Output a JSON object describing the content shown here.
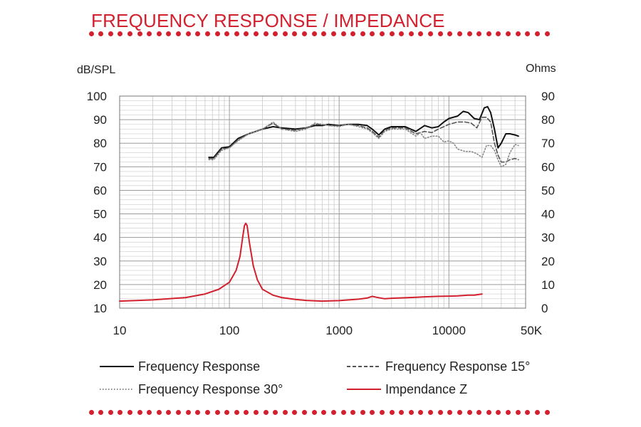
{
  "header": {
    "title": "FREQUENCY RESPONSE / IMPEDANCE",
    "accent_color": "#d2202f"
  },
  "chart_data": {
    "type": "line",
    "xscale": "log",
    "xlim": [
      10,
      50000
    ],
    "x_ticks": [
      10,
      100,
      1000,
      10000,
      50000
    ],
    "x_tick_labels": [
      "10",
      "100",
      "1000",
      "10000",
      "50K"
    ],
    "ylabel_left": "dB/SPL",
    "ylim_left": [
      10,
      100
    ],
    "y_ticks_left": [
      "10",
      "20",
      "30",
      "40",
      "50",
      "60",
      "70",
      "80",
      "90",
      "100"
    ],
    "ylabel_right": "Ohms",
    "ylim_right": [
      0,
      90
    ],
    "y_ticks_right": [
      "0",
      "10",
      "20",
      "30",
      "40",
      "50",
      "60",
      "70",
      "80",
      "90"
    ],
    "grid": true,
    "legend_position": "bottom",
    "series": [
      {
        "name": "Frequency Response",
        "axis": "left",
        "color": "#111111",
        "style": "solid",
        "x": [
          65,
          72,
          85,
          100,
          120,
          150,
          200,
          250,
          300,
          400,
          500,
          600,
          700,
          800,
          1000,
          1200,
          1500,
          1800,
          2000,
          2300,
          2600,
          3000,
          4000,
          5000,
          6000,
          7000,
          8000,
          9000,
          10000,
          12000,
          13500,
          15000,
          17000,
          19000,
          21000,
          22500,
          24000,
          26000,
          28000,
          30000,
          33000,
          36000,
          40000,
          43000
        ],
        "y": [
          74,
          74,
          78,
          78.5,
          82,
          84,
          86,
          87,
          86.5,
          86,
          86.5,
          87.5,
          87.5,
          88,
          87.5,
          88,
          88,
          87.5,
          86,
          83.5,
          86,
          87,
          87,
          85,
          87.5,
          86.5,
          87,
          89,
          90.5,
          91.5,
          93.5,
          93,
          90.5,
          90,
          95,
          95.5,
          93,
          86,
          78,
          80,
          84,
          84,
          83.5,
          83
        ]
      },
      {
        "name": "Frequency Response 15°",
        "axis": "left",
        "color": "#555555",
        "style": "dashed",
        "x": [
          65,
          72,
          85,
          100,
          120,
          150,
          200,
          250,
          300,
          400,
          500,
          600,
          700,
          800,
          1000,
          1200,
          1500,
          1800,
          2000,
          2300,
          2600,
          3000,
          4000,
          5000,
          6000,
          7000,
          8000,
          9000,
          10000,
          12000,
          14000,
          16000,
          18000,
          20000,
          22000,
          24000,
          26000,
          28000,
          30000,
          33000,
          36000,
          40000,
          43000
        ],
        "y": [
          73.5,
          73.5,
          77.5,
          78,
          81.5,
          84,
          86,
          88.5,
          86,
          85.5,
          86.5,
          88,
          88,
          87.5,
          87.5,
          88,
          87.5,
          86.5,
          85,
          82.5,
          85.5,
          86.5,
          86.5,
          84,
          85,
          84.5,
          86,
          87,
          88,
          89,
          89,
          88.5,
          86.5,
          91,
          91,
          89,
          80,
          75,
          72,
          72,
          73,
          73.5,
          73
        ]
      },
      {
        "name": "Frequency Response 30°",
        "axis": "left",
        "color": "#888888",
        "style": "dotted",
        "x": [
          65,
          72,
          85,
          100,
          120,
          150,
          200,
          250,
          300,
          400,
          500,
          600,
          700,
          800,
          1000,
          1200,
          1500,
          1800,
          2000,
          2300,
          2600,
          3000,
          4000,
          5000,
          5500,
          6000,
          7000,
          8000,
          9000,
          10000,
          11000,
          12000,
          14000,
          16000,
          18000,
          20000,
          22000,
          24000,
          26000,
          28000,
          30000,
          33000,
          36000,
          40000,
          43000
        ],
        "y": [
          73,
          73,
          77,
          78,
          81,
          84,
          86,
          89,
          86,
          85,
          86,
          88.5,
          88,
          87.5,
          87,
          88,
          87,
          86,
          84.5,
          82,
          85,
          86,
          86,
          83,
          84.5,
          82,
          83,
          83,
          80.5,
          81,
          80,
          77.5,
          76.5,
          76.5,
          75.5,
          74,
          79,
          79,
          77,
          73,
          70,
          71,
          76,
          79.5,
          79
        ]
      },
      {
        "name": "Impendance Z",
        "axis": "right",
        "color": "#d2202f",
        "style": "solid",
        "x": [
          10,
          20,
          40,
          60,
          80,
          100,
          115,
          125,
          132,
          137,
          141,
          145,
          152,
          165,
          180,
          200,
          250,
          300,
          400,
          500,
          700,
          1000,
          1500,
          1800,
          2000,
          2200,
          2600,
          3000,
          4000,
          5000,
          6000,
          8000,
          10000,
          12000,
          15000,
          17000,
          20000
        ],
        "y": [
          3,
          3.5,
          4.5,
          6,
          8,
          11,
          16,
          22,
          30,
          35,
          36,
          35,
          28,
          18,
          12,
          8,
          5.5,
          4.5,
          3.7,
          3.3,
          3,
          3.2,
          3.8,
          4.3,
          5,
          4.6,
          4,
          4.2,
          4.4,
          4.6,
          4.8,
          5,
          5.1,
          5.2,
          5.5,
          5.5,
          6
        ]
      }
    ]
  }
}
